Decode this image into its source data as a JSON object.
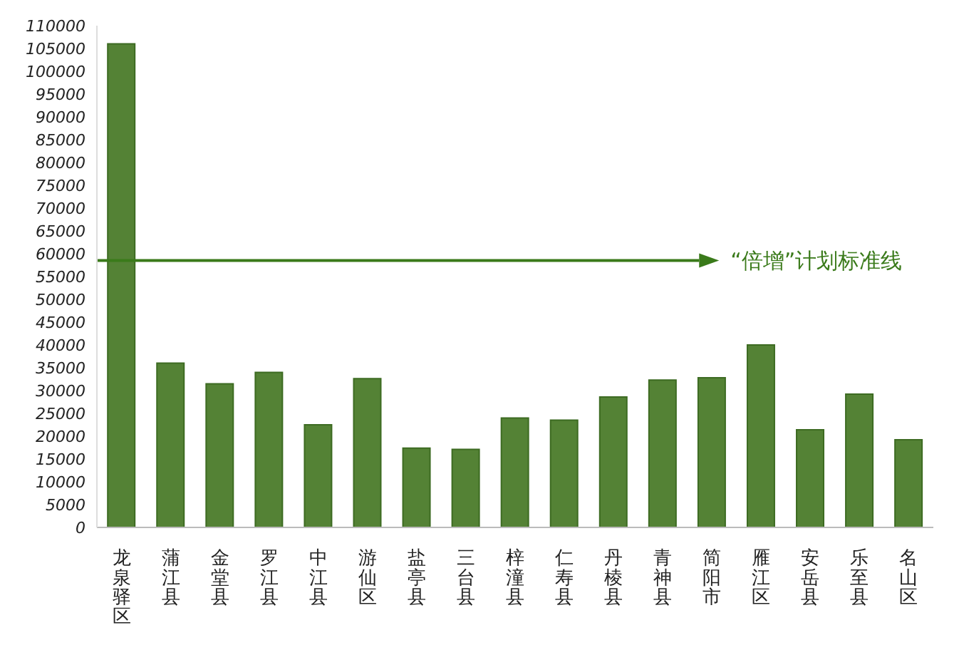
{
  "chart_data": {
    "type": "bar",
    "categories": [
      "龙泉驿区",
      "蒲江县",
      "金堂县",
      "罗江县",
      "中江县",
      "游仙区",
      "盐亭县",
      "三台县",
      "梓潼县",
      "仁寿县",
      "丹棱县",
      "青神县",
      "简阳市",
      "雁江区",
      "安岳县",
      "乐至县",
      "名山区"
    ],
    "values": [
      106000,
      36000,
      31500,
      34000,
      22500,
      32600,
      17400,
      17100,
      24000,
      23500,
      28600,
      32300,
      32800,
      40000,
      21400,
      29200,
      19200
    ],
    "color": "#548235",
    "ylim": [
      0,
      110000
    ],
    "yticks": [
      0,
      5000,
      10000,
      15000,
      20000,
      25000,
      30000,
      35000,
      40000,
      45000,
      50000,
      55000,
      60000,
      65000,
      70000,
      75000,
      80000,
      85000,
      90000,
      95000,
      100000,
      105000,
      110000
    ],
    "grid": false,
    "ref_lines": [
      {
        "axis": "y",
        "value": 58500,
        "label": "“倍增”计划标准线",
        "color": "#3a7a1a"
      }
    ]
  }
}
